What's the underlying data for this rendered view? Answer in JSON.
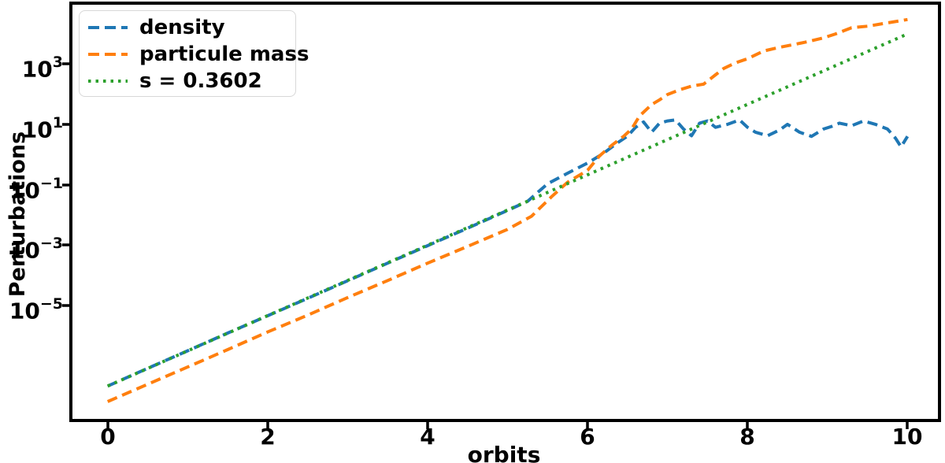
{
  "chart_data": {
    "type": "line",
    "title": "",
    "xlabel": "orbits",
    "ylabel": "Perturbations",
    "x_scale": "linear",
    "y_scale": "log",
    "grid": false,
    "legend_position": "upper left",
    "xlim": [
      -0.46,
      10.4
    ],
    "ylim_log10": [
      -8.82,
      5.02
    ],
    "x_ticks": [
      "0",
      "2",
      "4",
      "6",
      "8",
      "10"
    ],
    "y_ticks": [
      {
        "base": "10",
        "exp": "3"
      },
      {
        "base": "10",
        "exp": "1"
      },
      {
        "base": "10",
        "exp": "−1"
      },
      {
        "base": "10",
        "exp": "−3"
      },
      {
        "base": "10",
        "exp": "−5"
      }
    ],
    "series": [
      {
        "name": "density",
        "color": "#1f77b4",
        "style": "dashed",
        "linewidth": 4,
        "x": [
          0,
          0.5,
          1,
          1.5,
          2,
          2.5,
          3,
          3.5,
          4,
          4.5,
          5,
          5.25,
          5.5,
          5.75,
          6,
          6.2,
          6.35,
          6.5,
          6.6,
          6.7,
          6.8,
          6.9,
          7.0,
          7.1,
          7.2,
          7.3,
          7.4,
          7.5,
          7.6,
          7.75,
          7.9,
          8.0,
          8.1,
          8.25,
          8.4,
          8.5,
          8.65,
          8.8,
          8.95,
          9.05,
          9.15,
          9.3,
          9.45,
          9.6,
          9.75,
          9.85,
          9.92,
          10
        ],
        "y": [
          2.1e-08,
          8.1e-08,
          3.1e-07,
          1.2e-06,
          4.5e-06,
          1.7e-05,
          6.5e-05,
          0.00025,
          0.00095,
          0.0036,
          0.014,
          0.028,
          0.107,
          0.24,
          0.52,
          1.1,
          2.2,
          4.1,
          8,
          12,
          5.5,
          11,
          13,
          14,
          7,
          4.2,
          11,
          13,
          8,
          10,
          14,
          8,
          5.5,
          4.2,
          6.5,
          10,
          5.5,
          4.0,
          7,
          8.5,
          11,
          9,
          13,
          10,
          7,
          3.5,
          1.8,
          4
        ]
      },
      {
        "name": "particule mass",
        "color": "#ff7f0e",
        "style": "dashed",
        "linewidth": 4,
        "x": [
          0,
          0.5,
          1,
          1.5,
          2,
          2.5,
          3,
          3.5,
          4,
          4.5,
          5,
          5.3,
          5.55,
          5.75,
          6,
          6.15,
          6.3,
          6.45,
          6.55,
          6.65,
          6.8,
          6.9,
          7.0,
          7.15,
          7.3,
          7.45,
          7.6,
          7.7,
          7.85,
          8.0,
          8.2,
          8.4,
          8.55,
          8.75,
          8.95,
          9.1,
          9.3,
          9.5,
          9.7,
          10
        ],
        "y": [
          6.4e-09,
          2.4e-08,
          9e-08,
          3.4e-07,
          1.3e-06,
          4.7e-06,
          1.8e-05,
          6.6e-05,
          0.00025,
          0.0009,
          0.0033,
          0.009,
          0.04,
          0.12,
          0.3,
          0.9,
          2.0,
          4.0,
          7,
          19,
          45,
          65,
          98,
          140,
          185,
          215,
          440,
          710,
          1100,
          1500,
          2700,
          3600,
          4300,
          5500,
          7400,
          10000,
          16000,
          18000,
          22000,
          30000
        ]
      },
      {
        "name": "s = 0.3602",
        "color": "#2ca02c",
        "style": "dotted",
        "linewidth": 4,
        "x": [
          0,
          10
        ],
        "y": [
          2.1e-08,
          10000.0
        ]
      }
    ]
  }
}
